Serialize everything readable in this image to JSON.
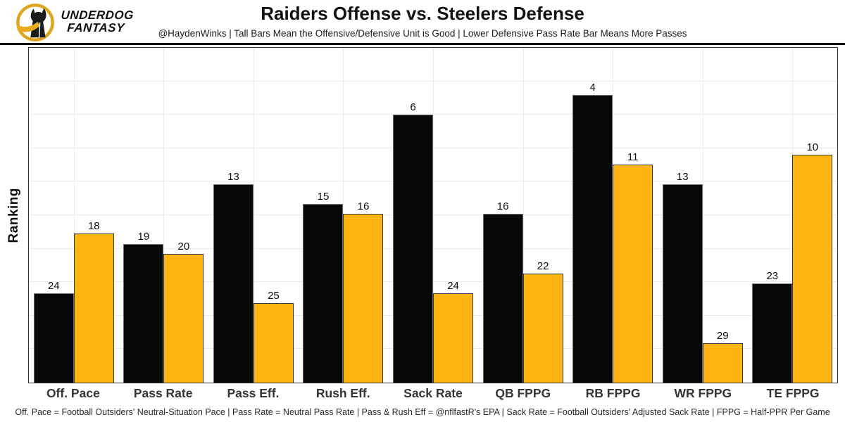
{
  "header": {
    "logo_line1": "UNDERDOG",
    "logo_line2": "FANTASY",
    "title": "Raiders Offense vs. Steelers Defense",
    "subtitle": "@HaydenWinks | Tall Bars Mean the Offensive/Defensive Unit is Good | Lower Defensive Pass Rate Bar Means More Passes"
  },
  "chart_data": {
    "type": "bar",
    "title": "Raiders Offense vs. Steelers Defense",
    "xlabel": "",
    "ylabel": "Ranking",
    "categories": [
      "Off. Pace",
      "Pass Rate",
      "Pass Eff.",
      "Rush Eff.",
      "Sack Rate",
      "QB FPPG",
      "RB FPPG",
      "WR FPPG",
      "TE FPPG"
    ],
    "series": [
      {
        "name": "Raiders Offense",
        "color": "#070707",
        "values": [
          24,
          19,
          13,
          15,
          6,
          16,
          4,
          13,
          23
        ]
      },
      {
        "name": "Steelers Defense",
        "color": "#FEB512",
        "values": [
          18,
          20,
          25,
          16,
          24,
          22,
          11,
          29,
          10
        ]
      }
    ],
    "value_semantics": "values are NFL rankings (1 = best of 32); bar height is inverted so lower rank number draws taller: height ∝ 33 − rank",
    "ylim": [
      0,
      33.75
    ],
    "grid": true,
    "legend_position": "none",
    "bar_labels_shown": true
  },
  "footer": {
    "note": "Off. Pace = Football Outsiders' Neutral-Situation Pace | Pass Rate = Neutral Pass Rate | Pass & Rush Eff = @nflfastR's EPA | Sack Rate = Football Outsiders' Adjusted Sack Rate | FPPG = Half-PPR Per Game"
  },
  "colors": {
    "gold": "#FEB512",
    "black_bar": "#070707",
    "logo_ring_gold": "#DFA51F",
    "gridline": "#ebebeb",
    "axis_border": "#2e2e2e"
  }
}
